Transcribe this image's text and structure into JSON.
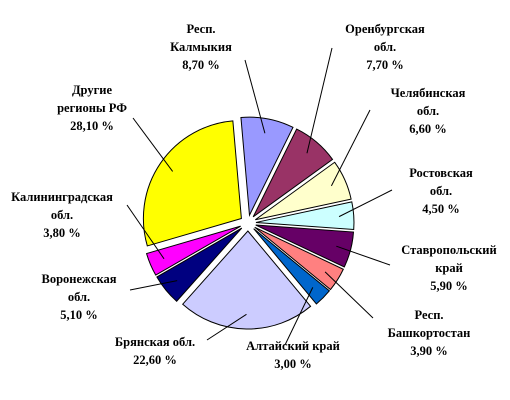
{
  "chart_data": {
    "type": "pie",
    "title": "",
    "slices": [
      {
        "label": [
          "Респ.",
          "Калмыкия"
        ],
        "value": 8.7,
        "display": "8,70 %",
        "color": "#9999ff"
      },
      {
        "label": [
          "Оренбургская",
          "обл."
        ],
        "value": 7.7,
        "display": "7,70 %",
        "color": "#993366"
      },
      {
        "label": [
          "Челябинская",
          "обл."
        ],
        "value": 6.6,
        "display": "6,60 %",
        "color": "#ffffcc"
      },
      {
        "label": [
          "Ростовская",
          "обл."
        ],
        "value": 4.5,
        "display": "4,50 %",
        "color": "#ccffff"
      },
      {
        "label": [
          "Ставропольский",
          "край"
        ],
        "value": 5.9,
        "display": "5,90 %",
        "color": "#660066"
      },
      {
        "label": [
          "Респ.",
          "Башкортостан"
        ],
        "value": 3.9,
        "display": "3,90 %",
        "color": "#ff8080"
      },
      {
        "label": [
          "Алтайский край"
        ],
        "value": 3.0,
        "display": "3,00 %",
        "color": "#0066cc"
      },
      {
        "label": [
          "Брянская обл."
        ],
        "value": 22.6,
        "display": "22,60 %",
        "color": "#ccccff"
      },
      {
        "label": [
          "Воронежская",
          "обл."
        ],
        "value": 5.1,
        "display": "5,10 %",
        "color": "#000080"
      },
      {
        "label": [
          "Калининградская",
          "обл."
        ],
        "value": 3.8,
        "display": "3,80 %",
        "color": "#ff00ff"
      },
      {
        "label": [
          "Другие",
          "регионы РФ"
        ],
        "value": 28.1,
        "display": "28,10 %",
        "color": "#ffff00"
      }
    ]
  }
}
